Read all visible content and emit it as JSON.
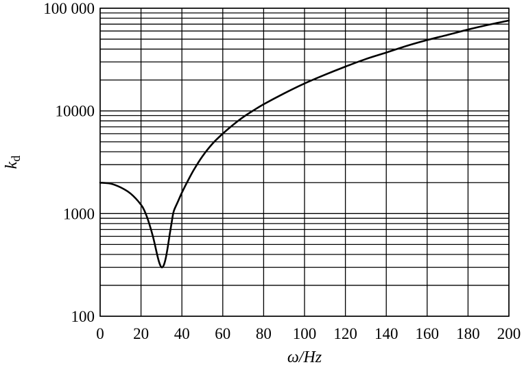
{
  "chart_data": {
    "type": "line",
    "xlabel": "ω/Hz",
    "ylabel": "k",
    "ylabel_subscript": "d",
    "y_scale": "log",
    "xlim": [
      0,
      200
    ],
    "ylim": [
      100,
      100000
    ],
    "grid": true,
    "x_ticks": [
      0,
      20,
      40,
      60,
      80,
      100,
      120,
      140,
      160,
      180,
      200
    ],
    "x_tick_labels": [
      "0",
      "20",
      "40",
      "60",
      "80",
      "100",
      "120",
      "140",
      "160",
      "180",
      "200"
    ],
    "y_ticks": [
      100,
      1000,
      10000,
      100000
    ],
    "y_tick_labels": [
      "100",
      "1000",
      "10000",
      "100 000"
    ],
    "series": [
      {
        "x": [
          0,
          5,
          10,
          15,
          20,
          22,
          24,
          26,
          28,
          29,
          30,
          31,
          32,
          33,
          34,
          35,
          36,
          38,
          40,
          43,
          46,
          50,
          55,
          60,
          65,
          70,
          75,
          80,
          90,
          100,
          110,
          120,
          130,
          140,
          150,
          160,
          170,
          180,
          190,
          200
        ],
        "y": [
          2000,
          1960,
          1800,
          1560,
          1220,
          1030,
          800,
          580,
          390,
          330,
          300,
          310,
          360,
          460,
          620,
          820,
          1050,
          1300,
          1600,
          2100,
          2700,
          3600,
          4800,
          6000,
          7300,
          8700,
          10100,
          11600,
          14800,
          18500,
          22500,
          27000,
          32000,
          37000,
          43000,
          49000,
          55000,
          62000,
          69000,
          76000
        ]
      }
    ]
  }
}
